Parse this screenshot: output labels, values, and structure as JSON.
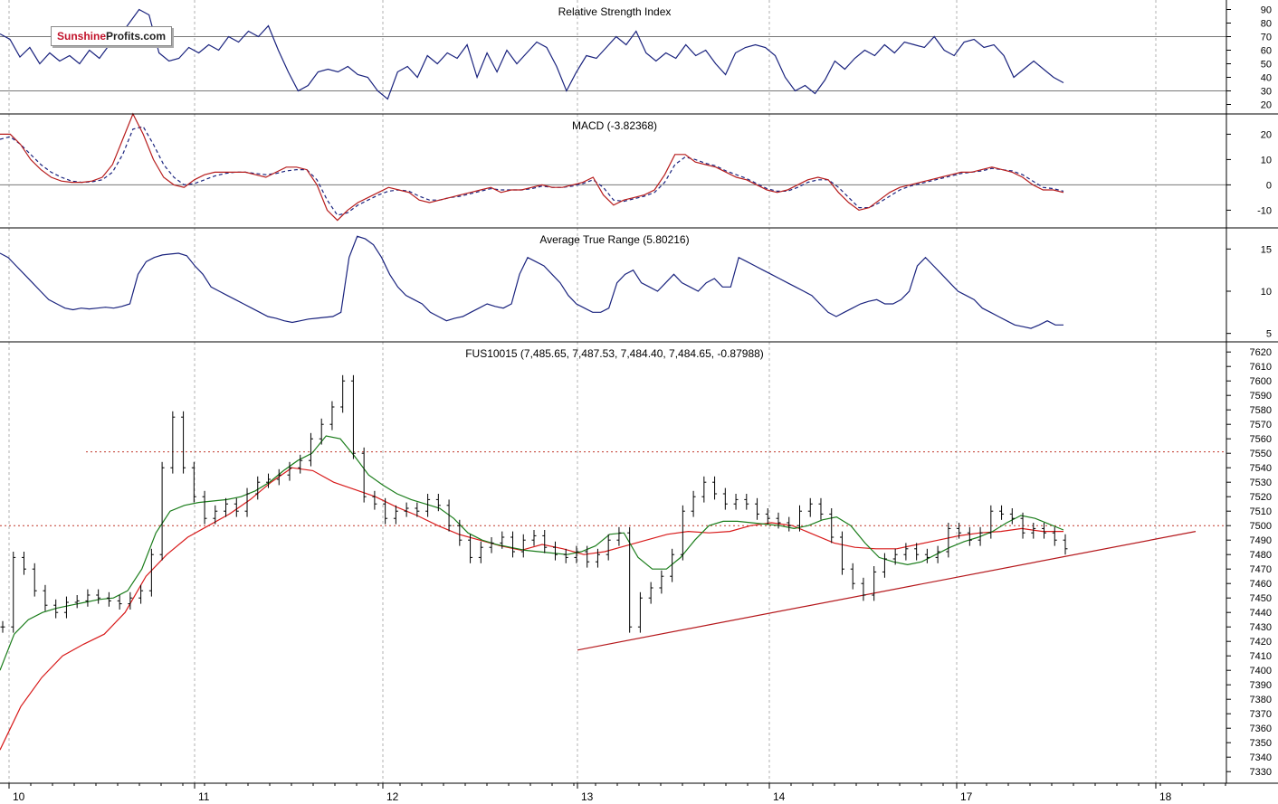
{
  "logo": {
    "part1": "Sunshine",
    "part2": "Profits.com"
  },
  "colors": {
    "rsi_line": "#1a237e",
    "macd_line": "#b71c1c",
    "macd_signal": "#1a237e",
    "atr_line": "#1a237e",
    "bars": "#000000",
    "sma_short": "#1b7d1b",
    "sma_long": "#d81b1b",
    "trend_line": "#b5181c",
    "resistance": "#c0392b",
    "grid": "#9e9e9e"
  },
  "chart_data": [
    {
      "type": "line",
      "title": "Relative Strength Index",
      "y_ticks": [
        90,
        80,
        70,
        60,
        50,
        40,
        30,
        20
      ],
      "ylim": [
        13,
        97
      ],
      "reference_lines": [
        70,
        30
      ],
      "series": [
        {
          "values": [
            72,
            68,
            55,
            62,
            50,
            58,
            52,
            56,
            50,
            60,
            54,
            64,
            70,
            80,
            90,
            86,
            58,
            52,
            54,
            62,
            58,
            64,
            60,
            70,
            66,
            74,
            70,
            78,
            60,
            44,
            30,
            34,
            44,
            46,
            44,
            48,
            42,
            40,
            30,
            24,
            44,
            48,
            40,
            56,
            50,
            58,
            54,
            64,
            40,
            58,
            44,
            60,
            50,
            58,
            66,
            62,
            48,
            30,
            44,
            56,
            54,
            62,
            70,
            64,
            74,
            58,
            52,
            58,
            54,
            64,
            56,
            60,
            50,
            42,
            58,
            62,
            64,
            62,
            56,
            40,
            30,
            34,
            28,
            38,
            52,
            46,
            54,
            60,
            56,
            64,
            58,
            66,
            64,
            62,
            70,
            60,
            56,
            66,
            68,
            62,
            64,
            56,
            40,
            46,
            52,
            46,
            40,
            36
          ]
        }
      ]
    },
    {
      "type": "line",
      "title": "MACD (-3.82368)",
      "y_ticks": [
        20,
        10,
        0,
        -10
      ],
      "ylim": [
        -17,
        28
      ],
      "reference_lines": [
        0
      ],
      "series": [
        {
          "values": [
            20,
            20,
            16,
            10,
            6,
            3,
            1.5,
            1,
            1,
            1.5,
            3,
            8,
            18,
            28,
            20,
            10,
            3,
            0,
            -1,
            2,
            4,
            5,
            5,
            5,
            5,
            4,
            3,
            5,
            7,
            7,
            6,
            0,
            -10,
            -14,
            -10,
            -7,
            -5,
            -3,
            -1,
            -2,
            -3,
            -6,
            -7,
            -6,
            -5,
            -4,
            -3,
            -2,
            -1,
            -3,
            -2,
            -2,
            -1,
            0,
            -1,
            -1,
            0,
            1,
            3,
            -4,
            -8,
            -6,
            -5,
            -4,
            -2,
            4,
            12,
            12,
            9,
            8,
            7,
            5,
            3,
            2,
            0,
            -2,
            -3,
            -2,
            0,
            2,
            3,
            2,
            -3,
            -7,
            -10,
            -9,
            -6,
            -3,
            -1,
            0,
            1,
            2,
            3,
            4,
            5,
            5,
            6,
            7,
            6,
            5,
            3,
            0,
            -2,
            -2,
            -3
          ]
        },
        {
          "values": [
            18,
            19,
            16,
            12,
            8,
            5,
            3,
            1.5,
            1,
            1.2,
            2,
            5,
            12,
            22,
            23,
            16,
            8,
            3,
            0,
            0.5,
            2,
            3.5,
            4.5,
            5,
            5,
            4.5,
            4,
            4.5,
            5.5,
            6,
            6,
            2,
            -6,
            -12,
            -11,
            -8,
            -6,
            -4,
            -2.5,
            -2,
            -2.5,
            -4.5,
            -6,
            -6,
            -5,
            -4.5,
            -3.5,
            -2.5,
            -1.5,
            -2,
            -2,
            -2,
            -1.5,
            -0.5,
            -1,
            -1,
            -0.5,
            0.5,
            2,
            -1,
            -6,
            -6.5,
            -5.5,
            -4.5,
            -3,
            1,
            8,
            11,
            10,
            8.5,
            7.5,
            5.5,
            4,
            2.5,
            0.5,
            -1.5,
            -2.5,
            -2.5,
            -1,
            1,
            2,
            2,
            -1,
            -5,
            -9,
            -9,
            -7,
            -4.5,
            -2,
            -0.5,
            0.5,
            1.5,
            2.5,
            3.5,
            4.5,
            5,
            5.5,
            6.5,
            6,
            5.5,
            4,
            1.5,
            -1,
            -1.5,
            -2.5
          ]
        }
      ]
    },
    {
      "type": "line",
      "title": "Average True Range (5.80216)",
      "y_ticks": [
        15,
        10,
        5
      ],
      "ylim": [
        4,
        17.5
      ],
      "series": [
        {
          "values": [
            14.5,
            14,
            13,
            12,
            11,
            10,
            9,
            8.5,
            8,
            7.8,
            8,
            7.9,
            8,
            8.1,
            8,
            8.2,
            8.5,
            12,
            13.5,
            14,
            14.3,
            14.4,
            14.5,
            14.2,
            13,
            12,
            10.5,
            10,
            9.5,
            9,
            8.5,
            8,
            7.5,
            7,
            6.8,
            6.5,
            6.3,
            6.5,
            6.7,
            6.8,
            6.9,
            7,
            7.5,
            14,
            16.5,
            16.2,
            15.5,
            14,
            12,
            10.5,
            9.5,
            9,
            8.5,
            7.5,
            7,
            6.5,
            6.8,
            7,
            7.5,
            8,
            8.5,
            8.2,
            8,
            8.5,
            12,
            14,
            13.5,
            13,
            12,
            11,
            9.5,
            8.5,
            8,
            7.5,
            7.5,
            8,
            11,
            12,
            12.5,
            11,
            10.5,
            10,
            11,
            12,
            11,
            10.5,
            10,
            11,
            11.5,
            10.5,
            10.5,
            14,
            13.5,
            13,
            12.5,
            12,
            11.5,
            11,
            10.5,
            10,
            9.5,
            8.5,
            7.5,
            7,
            7.5,
            8,
            8.5,
            8.8,
            9,
            8.5,
            8.5,
            9,
            10,
            13,
            14,
            13,
            12,
            11,
            10,
            9.5,
            9,
            8,
            7.5,
            7,
            6.5,
            6,
            5.8,
            5.6,
            6,
            6.5,
            6,
            6
          ]
        }
      ]
    },
    {
      "type": "line",
      "title": "FUS10015 (7,485.65, 7,487.53, 7,484.40, 7,484.65, -0.87988)",
      "y_ticks": [
        7620,
        7610,
        7600,
        7590,
        7580,
        7570,
        7560,
        7550,
        7540,
        7530,
        7520,
        7510,
        7500,
        7490,
        7480,
        7470,
        7460,
        7450,
        7440,
        7430,
        7420,
        7410,
        7400,
        7390,
        7380,
        7370,
        7360,
        7350,
        7340,
        7330
      ],
      "ylim": [
        7322,
        7627
      ],
      "x_ticks": [
        "10",
        "11",
        "12",
        "13",
        "14",
        "17",
        "18"
      ],
      "horizontal_lines": [
        7551,
        7500
      ],
      "price_close": [
        7430,
        7478,
        7470,
        7455,
        7445,
        7440,
        7447,
        7448,
        7452,
        7450,
        7448,
        7446,
        7450,
        7455,
        7480,
        7540,
        7575,
        7540,
        7520,
        7505,
        7510,
        7515,
        7510,
        7522,
        7530,
        7532,
        7535,
        7540,
        7545,
        7560,
        7570,
        7582,
        7600,
        7550,
        7520,
        7515,
        7505,
        7510,
        7512,
        7510,
        7518,
        7514,
        7500,
        7490,
        7478,
        7485,
        7488,
        7492,
        7482,
        7490,
        7493,
        7485,
        7480,
        7478,
        7482,
        7475,
        7480,
        7490,
        7495,
        7430,
        7450,
        7457,
        7465,
        7480,
        7510,
        7520,
        7530,
        7522,
        7515,
        7518,
        7515,
        7508,
        7505,
        7502,
        7500,
        7510,
        7515,
        7508,
        7492,
        7470,
        7460,
        7452,
        7468,
        7477,
        7480,
        7484,
        7480,
        7478,
        7482,
        7498,
        7495,
        7490,
        7495,
        7510,
        7508,
        7505,
        7495,
        7498,
        7495,
        7490,
        7484
      ],
      "sma_short": [
        7400,
        7425,
        7435,
        7440,
        7443,
        7445,
        7447,
        7449,
        7450,
        7455,
        7470,
        7495,
        7510,
        7514,
        7516,
        7517,
        7518,
        7520,
        7524,
        7530,
        7538,
        7545,
        7550,
        7562,
        7560,
        7548,
        7535,
        7528,
        7522,
        7518,
        7515,
        7512,
        7505,
        7495,
        7490,
        7487,
        7485,
        7483,
        7482,
        7481,
        7480,
        7482,
        7486,
        7494,
        7495,
        7478,
        7470,
        7470,
        7478,
        7490,
        7500,
        7503,
        7503,
        7502,
        7501,
        7500,
        7498,
        7500,
        7504,
        7506,
        7500,
        7488,
        7478,
        7475,
        7473,
        7475,
        7480,
        7485,
        7489,
        7492,
        7496,
        7502,
        7507,
        7505,
        7501,
        7497
      ],
      "sma_long": [
        7345,
        7375,
        7395,
        7410,
        7418,
        7425,
        7440,
        7465,
        7480,
        7492,
        7500,
        7508,
        7518,
        7530,
        7540,
        7538,
        7530,
        7525,
        7520,
        7513,
        7507,
        7500,
        7494,
        7490,
        7486,
        7483,
        7487,
        7484,
        7480,
        7482,
        7486,
        7490,
        7494,
        7496,
        7495,
        7496,
        7500,
        7502,
        7500,
        7494,
        7488,
        7485,
        7484,
        7484,
        7487,
        7490,
        7493,
        7495,
        7496,
        7498,
        7496,
        7496
      ],
      "trend_line": [
        [
          13,
          7414
        ],
        [
          18.2,
          7496
        ]
      ]
    }
  ]
}
